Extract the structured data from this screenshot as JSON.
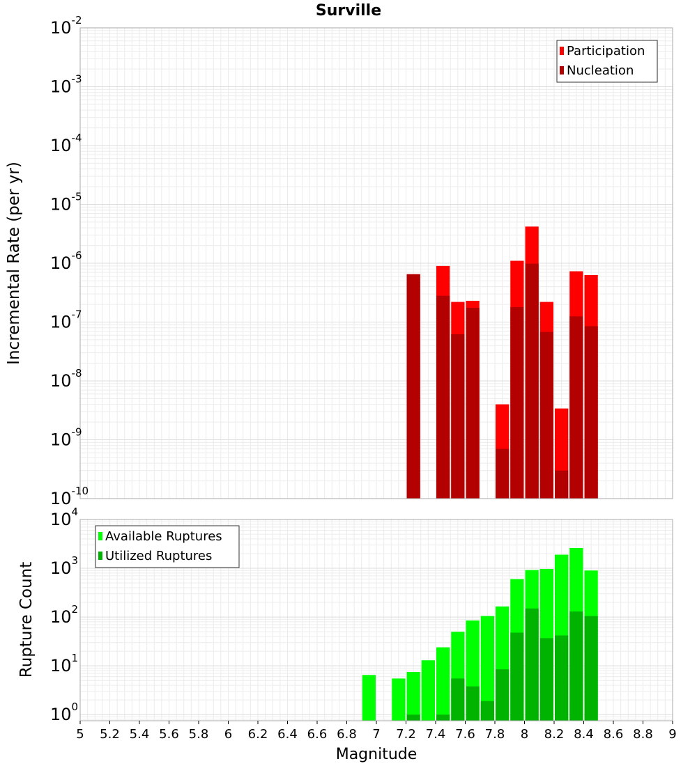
{
  "chart_data": [
    {
      "type": "bar",
      "panel": "top",
      "title": "Surville",
      "ylabel": "Incremental Rate (per yr)",
      "yscale": "log",
      "ylim": [
        1e-10,
        0.01
      ],
      "xlim": [
        5,
        9
      ],
      "grid": true,
      "legend_position": "top-right",
      "bar_width": 0.1,
      "series": [
        {
          "name": "Participation",
          "color": "#ff0000",
          "x": [
            7.25,
            7.45,
            7.55,
            7.65,
            7.85,
            7.95,
            8.05,
            8.15,
            8.25,
            8.35,
            8.45
          ],
          "values": [
            6.5e-07,
            9e-07,
            2.2e-07,
            2.3e-07,
            4e-09,
            1.1e-06,
            4.2e-06,
            2.2e-07,
            3.4e-09,
            7.3e-07,
            6.3e-07
          ]
        },
        {
          "name": "Nucleation",
          "color": "#b30000",
          "x": [
            7.25,
            7.45,
            7.55,
            7.65,
            7.85,
            7.95,
            8.05,
            8.15,
            8.25,
            8.35,
            8.45
          ],
          "values": [
            6.5e-07,
            2.8e-07,
            6.2e-08,
            1.75e-07,
            7e-10,
            1.8e-07,
            9.8e-07,
            6.8e-08,
            3e-10,
            1.25e-07,
            8.5e-08
          ]
        }
      ]
    },
    {
      "type": "bar",
      "panel": "bottom",
      "xlabel": "Magnitude",
      "ylabel": "Rupture Count",
      "yscale": "log",
      "ylim": [
        0.75,
        10000
      ],
      "xlim": [
        5,
        9
      ],
      "xticks": [
        "5",
        "5.2",
        "5.4",
        "5.6",
        "5.8",
        "6",
        "6.2",
        "6.4",
        "6.6",
        "6.8",
        "7",
        "7.2",
        "7.4",
        "7.6",
        "7.8",
        "8",
        "8.2",
        "8.4",
        "8.6",
        "8.8",
        "9"
      ],
      "grid": true,
      "legend_position": "top-left",
      "bar_width": 0.1,
      "series": [
        {
          "name": "Available Ruptures",
          "color": "#00ff00",
          "x": [
            6.95,
            7.15,
            7.25,
            7.35,
            7.45,
            7.55,
            7.65,
            7.75,
            7.85,
            7.95,
            8.05,
            8.15,
            8.25,
            8.35,
            8.45
          ],
          "values": [
            6.5,
            5.5,
            7.5,
            13,
            24,
            50,
            85,
            105,
            165,
            600,
            920,
            970,
            1900,
            2600,
            900
          ]
        },
        {
          "name": "Utilized Ruptures",
          "color": "#00b300",
          "x": [
            7.25,
            7.45,
            7.55,
            7.65,
            7.75,
            7.85,
            7.95,
            8.05,
            8.15,
            8.25,
            8.35,
            8.45
          ],
          "values": [
            1,
            1,
            5.5,
            3.8,
            1.9,
            8.5,
            48,
            150,
            37,
            42,
            130,
            105
          ]
        }
      ]
    }
  ]
}
